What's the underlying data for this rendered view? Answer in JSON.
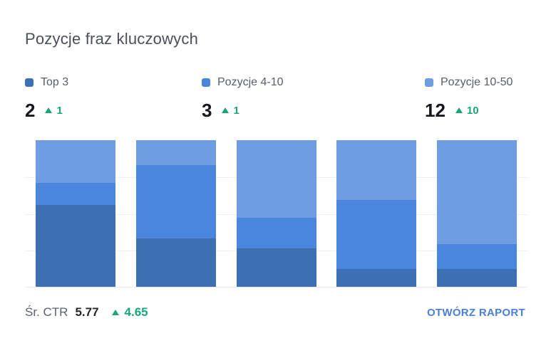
{
  "title": "Pozycje fraz kluczowych",
  "colors": {
    "top3": "#3d70b2",
    "pozycje_4_10": "#4a86db",
    "pozycje_10_50": "#6f9de3",
    "positive_green": "#18a77b",
    "link_blue": "#4a80d8"
  },
  "metrics": [
    {
      "label": "Top 3",
      "value": "2",
      "delta": "1",
      "color": "#3d70b2"
    },
    {
      "label": "Pozycje 4-10",
      "value": "3",
      "delta": "1",
      "color": "#4a86db"
    },
    {
      "label": "Pozycje 10-50",
      "value": "12",
      "delta": "10",
      "color": "#6f9de3"
    }
  ],
  "footer": {
    "ctr_label": "Śr. CTR",
    "ctr_value": "5.77",
    "ctr_delta": "4.65",
    "report_link": "OTWÓRZ RAPORT"
  },
  "chart_data": {
    "type": "bar",
    "stacked": true,
    "unit": "percent_of_bar_height",
    "bar_count": 5,
    "categories": [
      "",
      "",
      "",
      "",
      ""
    ],
    "series": [
      {
        "name": "Top 3",
        "color": "#3d70b2",
        "values": [
          56,
          33,
          26,
          12,
          12
        ]
      },
      {
        "name": "Pozycje 4-10",
        "color": "#4a86db",
        "values": [
          15,
          50,
          21,
          47,
          17
        ]
      },
      {
        "name": "Pozycje 10-50",
        "color": "#6f9de3",
        "values": [
          29,
          17,
          53,
          41,
          71
        ]
      }
    ],
    "stack_order_bottom_to_top": [
      "Top 3",
      "Pozycje 4-10",
      "Pozycje 10-50"
    ],
    "ylim": [
      0,
      100
    ],
    "grid": "horizontal",
    "gridline_levels_pct": [
      25,
      50,
      75
    ],
    "baseline": true,
    "legend_position": "top",
    "axis_labels_visible": false
  }
}
